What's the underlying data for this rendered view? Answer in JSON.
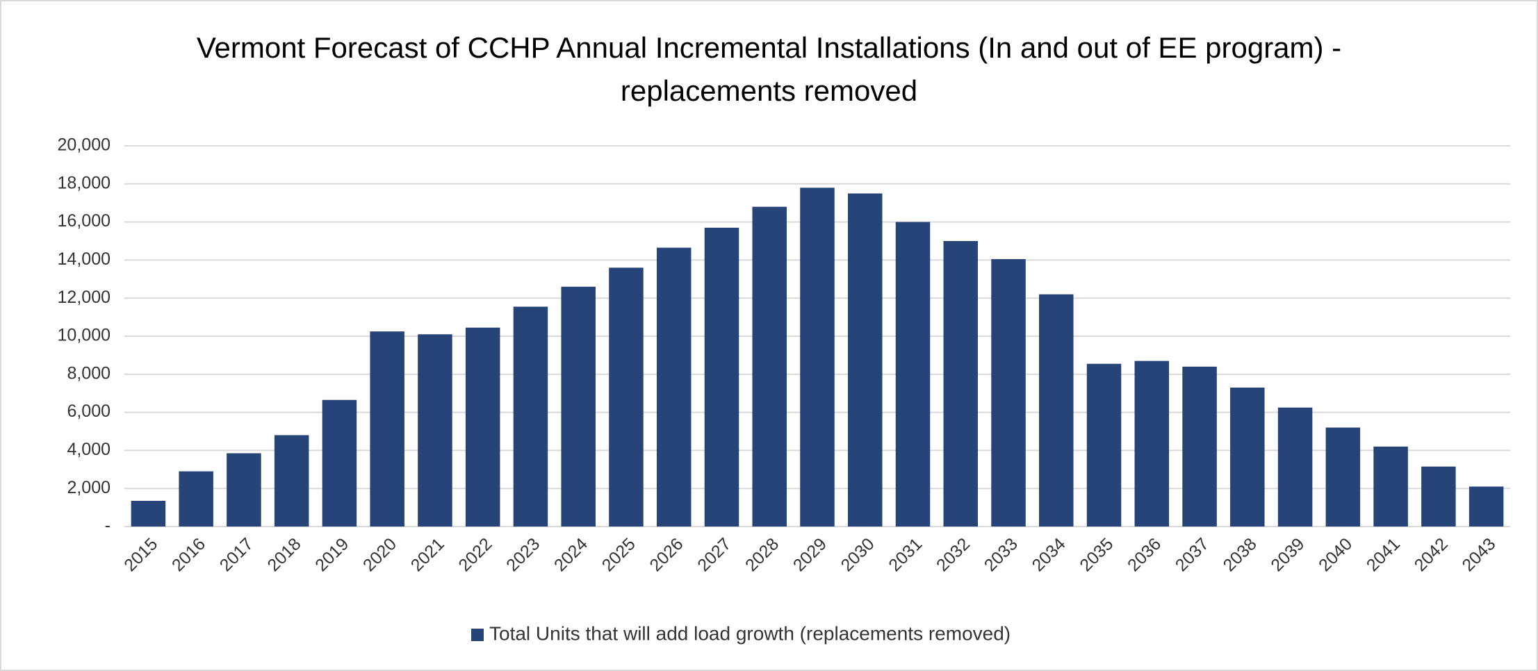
{
  "chart_data": {
    "type": "bar",
    "title": "Vermont Forecast of CCHP Annual Incremental Installations (In and out of EE program) - replacements removed",
    "categories": [
      "2015",
      "2016",
      "2017",
      "2018",
      "2019",
      "2020",
      "2021",
      "2022",
      "2023",
      "2024",
      "2025",
      "2026",
      "2027",
      "2028",
      "2029",
      "2030",
      "2031",
      "2032",
      "2033",
      "2034",
      "2035",
      "2036",
      "2037",
      "2038",
      "2039",
      "2040",
      "2041",
      "2042",
      "2043"
    ],
    "series": [
      {
        "name": "Total Units that will add load growth (replacements removed)",
        "color": "#264478",
        "values": [
          1350,
          2900,
          3850,
          4800,
          6650,
          10250,
          10100,
          10450,
          11550,
          12600,
          13600,
          14650,
          15700,
          16800,
          17800,
          17500,
          16000,
          15000,
          14050,
          12200,
          8550,
          8700,
          8400,
          7300,
          6250,
          5200,
          4200,
          3150,
          2100
        ]
      }
    ],
    "ylim": [
      0,
      20000
    ],
    "yticks": [
      {
        "value": 0,
        "label": "-"
      },
      {
        "value": 2000,
        "label": "2,000"
      },
      {
        "value": 4000,
        "label": "4,000"
      },
      {
        "value": 6000,
        "label": "6,000"
      },
      {
        "value": 8000,
        "label": "8,000"
      },
      {
        "value": 10000,
        "label": "10,000"
      },
      {
        "value": 12000,
        "label": "12,000"
      },
      {
        "value": 14000,
        "label": "14,000"
      },
      {
        "value": 16000,
        "label": "16,000"
      },
      {
        "value": 18000,
        "label": "18,000"
      },
      {
        "value": 20000,
        "label": "20,000"
      }
    ],
    "grid": true,
    "legend": "bottom"
  }
}
